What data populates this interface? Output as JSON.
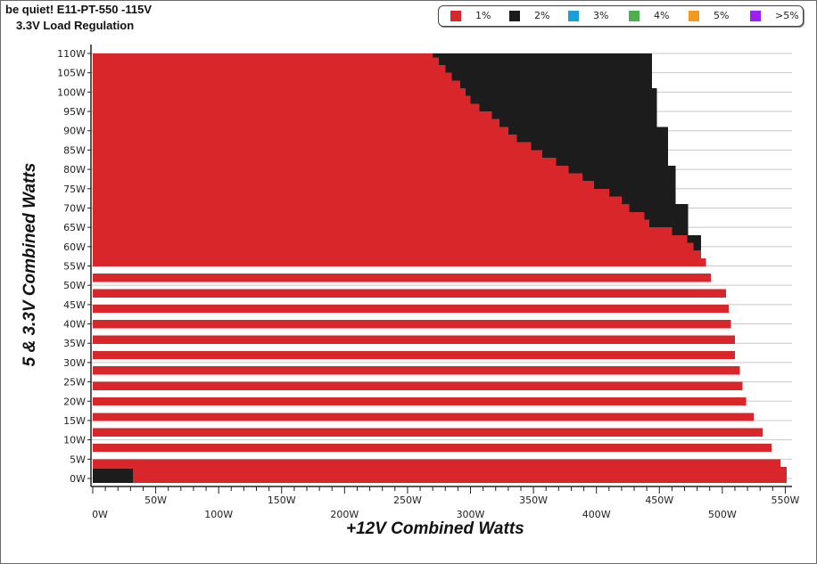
{
  "chart_data": {
    "type": "heatmap",
    "title": "be quiet! E11-PT-550 -115V",
    "subtitle": "3.3V Load Regulation",
    "xlabel": "+12V Combined Watts",
    "ylabel": "5 & 3.3V Combined Watts",
    "xlim": [
      0,
      550
    ],
    "ylim": [
      0,
      110
    ],
    "x_ticks": [
      "0W",
      "50W",
      "100W",
      "150W",
      "200W",
      "250W",
      "300W",
      "350W",
      "400W",
      "450W",
      "500W",
      "550W"
    ],
    "y_ticks": [
      "0W",
      "5W",
      "10W",
      "15W",
      "20W",
      "25W",
      "30W",
      "35W",
      "40W",
      "45W",
      "50W",
      "55W",
      "60W",
      "65W",
      "70W",
      "75W",
      "80W",
      "85W",
      "90W",
      "95W",
      "100W",
      "105W",
      "110W"
    ],
    "legend": {
      "placement": "top-right",
      "entries": [
        {
          "label": "1%",
          "color": "#d9262a"
        },
        {
          "label": "2%",
          "color": "#1c1c1c"
        },
        {
          "label": "3%",
          "color": "#1a9fd9"
        },
        {
          "label": "4%",
          "color": "#4caf50"
        },
        {
          "label": "5%",
          "color": "#f39a1e"
        },
        {
          "label": ">5%",
          "color": "#9b1ff0"
        }
      ]
    },
    "grid": true,
    "regions": [
      {
        "deviation": "1%",
        "boundary_12v_max": [
          [
            0,
            551
          ],
          [
            2,
            551
          ],
          [
            4,
            546
          ],
          [
            8,
            539
          ],
          [
            12,
            532
          ],
          [
            16,
            525
          ],
          [
            20,
            519
          ],
          [
            24,
            516
          ],
          [
            28,
            514
          ],
          [
            32,
            510
          ],
          [
            36,
            510
          ],
          [
            40,
            507
          ],
          [
            44,
            505
          ],
          [
            48,
            503
          ],
          [
            52,
            491
          ],
          [
            56,
            487
          ],
          [
            58,
            483
          ],
          [
            60,
            477
          ],
          [
            62,
            472
          ],
          [
            64,
            460
          ],
          [
            66,
            442
          ],
          [
            68,
            438
          ],
          [
            70,
            426
          ],
          [
            72,
            420
          ],
          [
            74,
            410
          ],
          [
            76,
            398
          ],
          [
            78,
            389
          ],
          [
            80,
            378
          ],
          [
            82,
            368
          ],
          [
            84,
            357
          ],
          [
            86,
            348
          ],
          [
            88,
            337
          ],
          [
            90,
            330
          ],
          [
            92,
            323
          ],
          [
            94,
            317
          ],
          [
            96,
            307
          ],
          [
            98,
            300
          ],
          [
            100,
            296
          ],
          [
            102,
            292
          ],
          [
            104,
            285
          ],
          [
            106,
            280
          ],
          [
            108,
            275
          ],
          [
            110,
            270
          ]
        ]
      },
      {
        "deviation": "2%",
        "boundary_12v_max": [
          [
            52,
            491
          ],
          [
            56,
            487
          ],
          [
            58,
            483
          ],
          [
            60,
            483
          ],
          [
            62,
            483
          ],
          [
            64,
            473
          ],
          [
            66,
            473
          ],
          [
            68,
            473
          ],
          [
            70,
            473
          ],
          [
            72,
            463
          ],
          [
            74,
            463
          ],
          [
            76,
            463
          ],
          [
            78,
            463
          ],
          [
            80,
            463
          ],
          [
            82,
            457
          ],
          [
            84,
            457
          ],
          [
            86,
            457
          ],
          [
            88,
            457
          ],
          [
            90,
            457
          ],
          [
            92,
            448
          ],
          [
            94,
            448
          ],
          [
            96,
            448
          ],
          [
            98,
            448
          ],
          [
            100,
            448
          ],
          [
            102,
            444
          ],
          [
            104,
            444
          ],
          [
            106,
            444
          ],
          [
            108,
            444
          ],
          [
            110,
            444
          ]
        ],
        "low_load_block": {
          "y_max": 2.5,
          "x_max": 32
        }
      }
    ]
  }
}
